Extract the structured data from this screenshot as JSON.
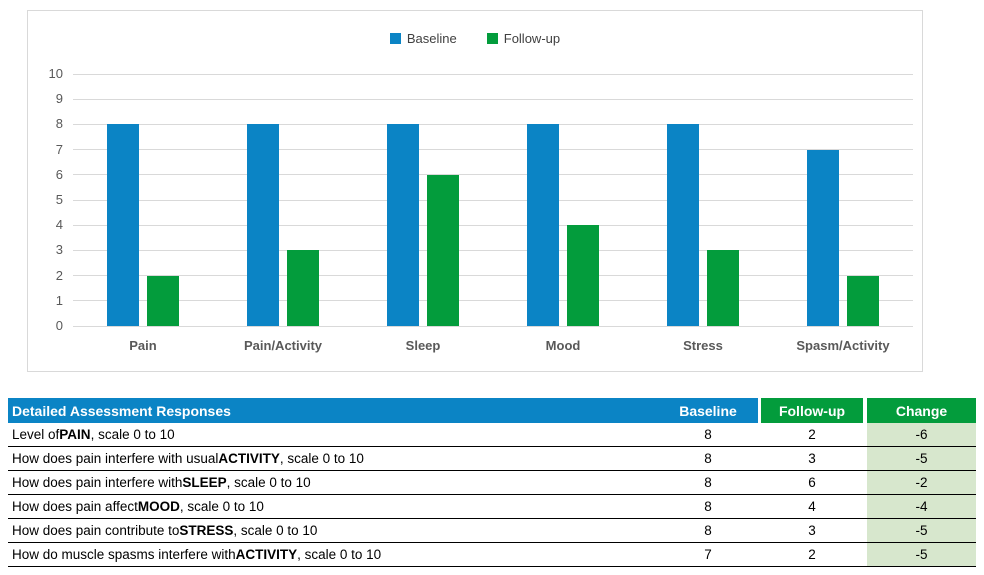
{
  "colors": {
    "baseline_blue": "#0b84c5",
    "followup_green": "#039c3c",
    "change_cell_bg": "#d7e7cd",
    "gridline": "#d9d9d9",
    "axis_text": "#595959"
  },
  "chart_data": {
    "type": "bar",
    "title": "",
    "xlabel": "",
    "ylabel": "",
    "categories": [
      "Pain",
      "Pain/Activity",
      "Sleep",
      "Mood",
      "Stress",
      "Spasm/Activity"
    ],
    "series": [
      {
        "name": "Baseline",
        "color": "#0b84c5",
        "values": [
          8,
          8,
          8,
          8,
          8,
          7
        ]
      },
      {
        "name": "Follow-up",
        "color": "#039c3c",
        "values": [
          2,
          3,
          6,
          4,
          3,
          2
        ]
      }
    ],
    "ylim": [
      0,
      10
    ],
    "yticks": [
      0,
      1,
      2,
      3,
      4,
      5,
      6,
      7,
      8,
      9,
      10
    ],
    "grid": true,
    "legend_position": "top-center"
  },
  "table": {
    "header": {
      "title": "Detailed Assessment Responses",
      "baseline": "Baseline",
      "followup": "Follow-up",
      "change": "Change"
    },
    "rows": [
      {
        "prefix": "Level of ",
        "keyword": "PAIN",
        "suffix": ", scale 0 to 10",
        "baseline": "8",
        "followup": "2",
        "change": "-6"
      },
      {
        "prefix": "How does pain interfere with usual ",
        "keyword": "ACTIVITY",
        "suffix": ", scale 0 to 10",
        "baseline": "8",
        "followup": "3",
        "change": "-5"
      },
      {
        "prefix": "How does pain interfere with ",
        "keyword": "SLEEP",
        "suffix": ", scale 0 to 10",
        "baseline": "8",
        "followup": "6",
        "change": "-2"
      },
      {
        "prefix": "How does pain affect ",
        "keyword": "MOOD",
        "suffix": ", scale 0 to 10",
        "baseline": "8",
        "followup": "4",
        "change": "-4"
      },
      {
        "prefix": "How does pain contribute to ",
        "keyword": "STRESS",
        "suffix": ", scale 0 to 10",
        "baseline": "8",
        "followup": "3",
        "change": "-5"
      },
      {
        "prefix": "How do muscle spasms interfere with ",
        "keyword": "ACTIVITY",
        "suffix": ", scale 0 to 10",
        "baseline": "7",
        "followup": "2",
        "change": "-5"
      }
    ]
  }
}
